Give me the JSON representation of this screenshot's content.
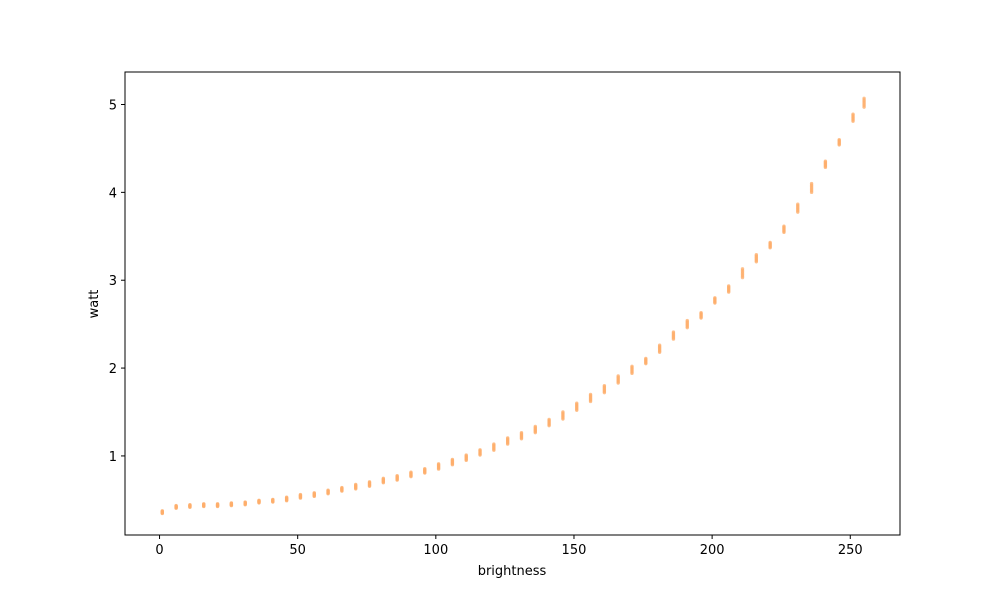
{
  "chart_data": {
    "type": "scatter",
    "title": "",
    "xlabel": "brightness",
    "ylabel": "watt",
    "xlim": [
      -12.5,
      268
    ],
    "ylim": [
      0.1,
      5.37
    ],
    "xticks": [
      0,
      50,
      100,
      150,
      200,
      250
    ],
    "yticks": [
      1,
      2,
      3,
      4,
      5
    ],
    "xtick_labels": [
      "0",
      "50",
      "100",
      "150",
      "200",
      "250"
    ],
    "ytick_labels": [
      "1",
      "2",
      "3",
      "4",
      "5"
    ],
    "grid": false,
    "marker_color": "#fdae6b",
    "series": [
      {
        "x": [
          1,
          6,
          11,
          16,
          21,
          26,
          31,
          36,
          41,
          46,
          51,
          56,
          61,
          66,
          71,
          76,
          81,
          86,
          91,
          96,
          101,
          106,
          111,
          116,
          121,
          126,
          131,
          136,
          141,
          146,
          151,
          156,
          161,
          166,
          171,
          176,
          181,
          186,
          191,
          196,
          201,
          206,
          211,
          216,
          221,
          226,
          231,
          236,
          241,
          246,
          251,
          255
        ],
        "y": [
          0.36,
          0.42,
          0.43,
          0.44,
          0.44,
          0.45,
          0.46,
          0.48,
          0.49,
          0.51,
          0.54,
          0.56,
          0.59,
          0.62,
          0.65,
          0.68,
          0.72,
          0.75,
          0.79,
          0.83,
          0.88,
          0.93,
          0.98,
          1.04,
          1.1,
          1.17,
          1.23,
          1.3,
          1.38,
          1.46,
          1.56,
          1.66,
          1.76,
          1.87,
          1.98,
          2.08,
          2.22,
          2.37,
          2.5,
          2.6,
          2.77,
          2.9,
          3.08,
          3.25,
          3.4,
          3.58,
          3.82,
          4.05,
          4.32,
          4.57,
          4.85,
          5.02
        ],
        "spread": [
          0.03,
          0.03,
          0.03,
          0.03,
          0.03,
          0.03,
          0.03,
          0.03,
          0.03,
          0.04,
          0.04,
          0.04,
          0.04,
          0.04,
          0.05,
          0.05,
          0.05,
          0.05,
          0.05,
          0.05,
          0.06,
          0.06,
          0.06,
          0.06,
          0.07,
          0.07,
          0.07,
          0.07,
          0.07,
          0.08,
          0.08,
          0.08,
          0.08,
          0.08,
          0.08,
          0.06,
          0.08,
          0.08,
          0.08,
          0.06,
          0.06,
          0.07,
          0.1,
          0.08,
          0.06,
          0.07,
          0.09,
          0.1,
          0.07,
          0.06,
          0.08,
          0.1
        ]
      }
    ]
  }
}
